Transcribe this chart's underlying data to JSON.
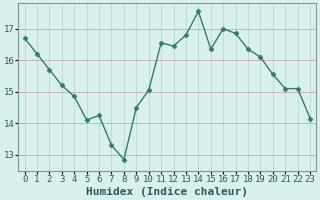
{
  "x": [
    0,
    1,
    2,
    3,
    4,
    5,
    6,
    7,
    8,
    9,
    10,
    11,
    12,
    13,
    14,
    15,
    16,
    17,
    18,
    19,
    20,
    21,
    22,
    23
  ],
  "y": [
    16.7,
    16.2,
    15.7,
    15.2,
    14.85,
    14.1,
    14.25,
    13.3,
    12.85,
    14.5,
    15.05,
    16.55,
    16.45,
    16.8,
    17.55,
    16.35,
    17.0,
    16.85,
    16.35,
    16.1,
    15.55,
    15.1,
    15.1,
    14.15
  ],
  "line_color": "#2e7d6e",
  "marker": "D",
  "marker_size": 2.5,
  "bg_color": "#d8f0ee",
  "grid_color_v": "#b8d8d4",
  "grid_color_h": "#c8a8a8",
  "xlabel": "Humidex (Indice chaleur)",
  "xlabel_fontsize": 8,
  "ylim": [
    12.5,
    17.8
  ],
  "xlim": [
    -0.5,
    23.5
  ],
  "yticks": [
    13,
    14,
    15,
    16,
    17
  ],
  "xticks": [
    0,
    1,
    2,
    3,
    4,
    5,
    6,
    7,
    8,
    9,
    10,
    11,
    12,
    13,
    14,
    15,
    16,
    17,
    18,
    19,
    20,
    21,
    22,
    23
  ],
  "tick_fontsize": 6.5,
  "line_width": 1.0
}
